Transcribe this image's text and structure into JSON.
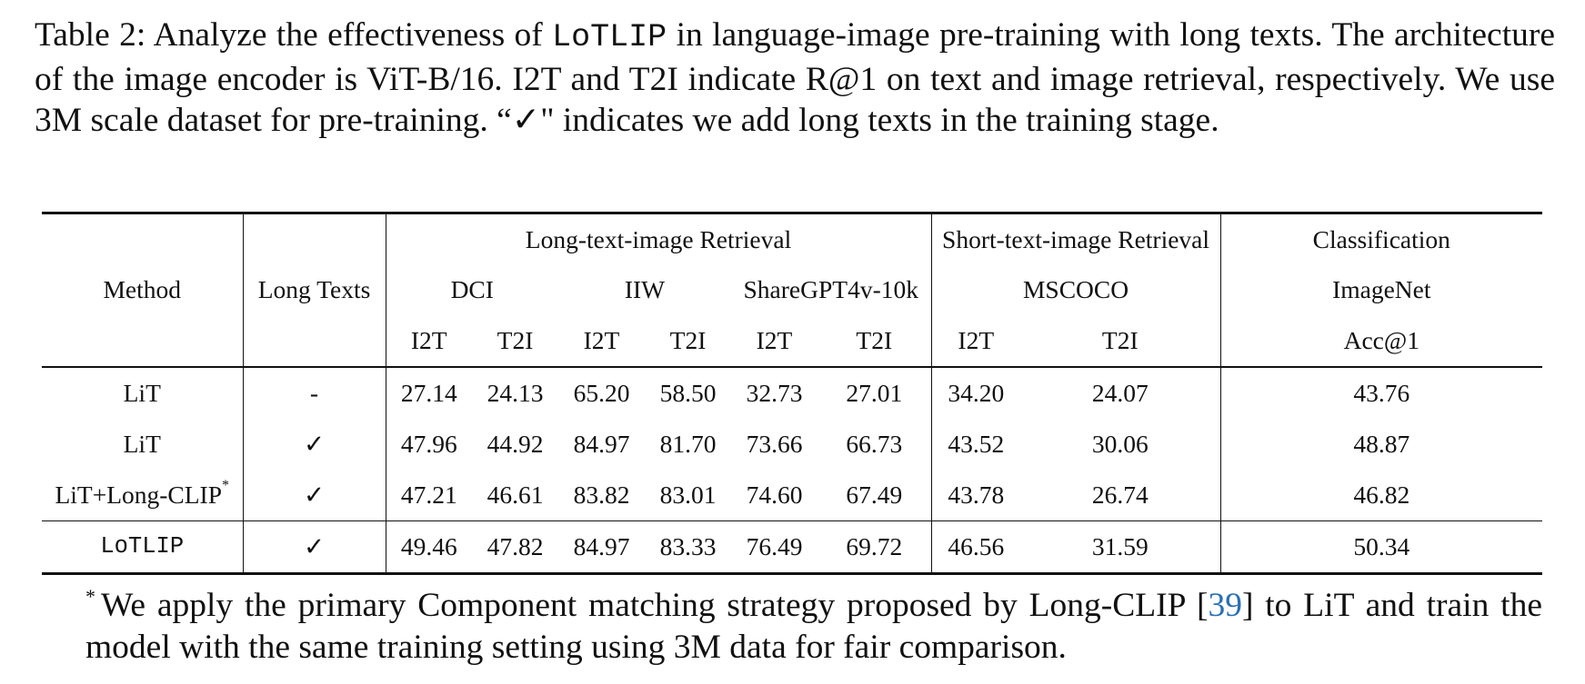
{
  "caption": {
    "part1": "Table 2: Analyze the effectiveness of ",
    "method": "LoTLIP",
    "part2": " in language-image pre-training with long texts. The architecture of the image encoder is ViT-B/16. I2T and T2I indicate R@1 on text and image retrieval, respectively. We use 3M scale dataset for pre-training. “✓\" indicates we add long texts in the training stage."
  },
  "table": {
    "header": {
      "method": "Method",
      "long_texts": "Long Texts",
      "long_group": "Long-text-image Retrieval",
      "short_group": "Short-text-image Retrieval",
      "cls_group": "Classification",
      "datasets": [
        "DCI",
        "IIW",
        "ShareGPT4v-10k",
        "MSCOCO",
        "ImageNet"
      ],
      "metrics": [
        "I2T",
        "T2I",
        "I2T",
        "T2I",
        "I2T",
        "T2I",
        "I2T",
        "T2I",
        "Acc@1"
      ]
    },
    "rows": [
      {
        "method": "LiT",
        "method_sup": "",
        "long_texts": "-",
        "values": [
          "27.14",
          "24.13",
          "65.20",
          "58.50",
          "32.73",
          "27.01",
          "34.20",
          "24.07",
          "43.76"
        ]
      },
      {
        "method": "LiT",
        "method_sup": "",
        "long_texts": "✓",
        "values": [
          "47.96",
          "44.92",
          "84.97",
          "81.70",
          "73.66",
          "66.73",
          "43.52",
          "30.06",
          "48.87"
        ]
      },
      {
        "method": "LiT+Long-CLIP",
        "method_sup": "*",
        "long_texts": "✓",
        "values": [
          "47.21",
          "46.61",
          "83.82",
          "83.01",
          "74.60",
          "67.49",
          "43.78",
          "26.74",
          "46.82"
        ]
      },
      {
        "method": "LoTLIP",
        "method_sup": "",
        "long_texts": "✓",
        "values": [
          "49.46",
          "47.82",
          "84.97",
          "83.33",
          "76.49",
          "69.72",
          "46.56",
          "31.59",
          "50.34"
        ]
      }
    ]
  },
  "footnote": {
    "marker": "*",
    "part1": "We apply the primary Component matching strategy proposed by Long-CLIP [",
    "cite": "39",
    "part2": "] to LiT and train the model with the same training setting using 3M data for fair comparison."
  }
}
